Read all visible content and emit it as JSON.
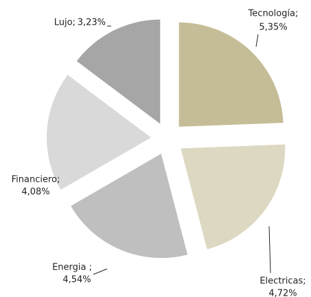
{
  "chart_data": {
    "type": "pie",
    "categories": [
      "Tecnología;",
      "Electricas;",
      "Energia ;",
      "Financiero;",
      "Lujo;"
    ],
    "values": [
      5.35,
      4.72,
      4.54,
      4.08,
      3.23
    ],
    "value_labels": [
      "5,35%",
      "4,72%",
      "4,54%",
      "4,08%",
      "3,23%"
    ],
    "colors": [
      "#c5bd97",
      "#ddd8c1",
      "#bfbfbf",
      "#d9d9d9",
      "#a6a6a6"
    ]
  }
}
